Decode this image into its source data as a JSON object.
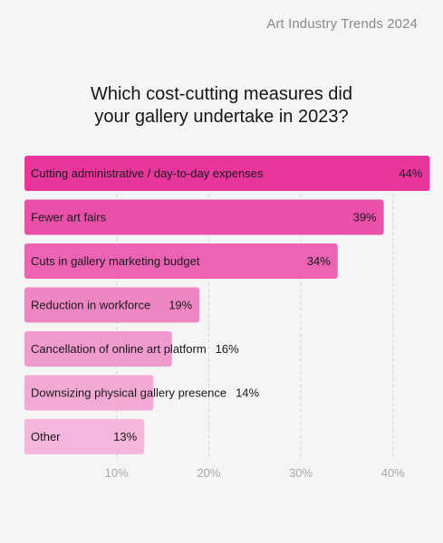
{
  "header": {
    "brand": "Art Industry Trends 2024"
  },
  "chart_data": {
    "type": "bar",
    "orientation": "horizontal",
    "title_lines": [
      "Which cost-cutting measures did",
      "your gallery undertake in 2023?"
    ],
    "categories": [
      "Cutting administrative / day-to-day expenses",
      "Fewer art fairs",
      "Cuts in gallery marketing budget",
      "Reduction in workforce",
      "Cancellation of online art platform",
      "Downsizing physical gallery presence",
      "Other"
    ],
    "values": [
      44,
      39,
      34,
      19,
      16,
      14,
      13
    ],
    "value_labels": [
      "44%",
      "39%",
      "34%",
      "19%",
      "16%",
      "14%",
      "13%"
    ],
    "bar_colors": [
      "#e8369c",
      "#ea4fa9",
      "#ec62b4",
      "#ee86c4",
      "#f09acd",
      "#f2aad5",
      "#f4b6db"
    ],
    "xlim": [
      0,
      42
    ],
    "ticks": [
      10,
      20,
      30,
      40
    ],
    "tick_labels": [
      "10%",
      "20%",
      "30%",
      "40%"
    ],
    "grid": true,
    "gridline_color": "#d4d4d4"
  }
}
